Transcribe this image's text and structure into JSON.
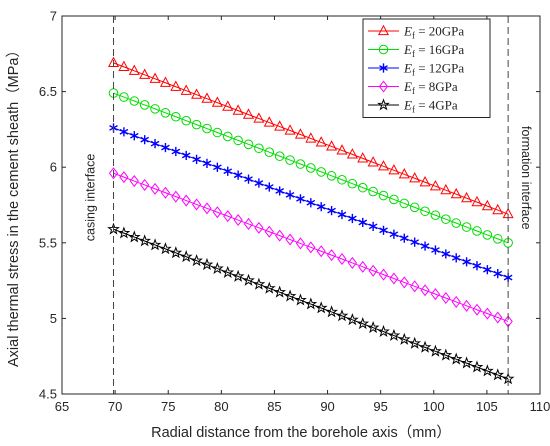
{
  "chart_data": {
    "type": "line",
    "xlabel": "Radial distance from the borehole axis（mm）",
    "ylabel": "Axial thermal stress in the cement sheath（MPa）",
    "xlim": [
      65,
      110
    ],
    "ylim": [
      4.5,
      7
    ],
    "xticks": [
      "65",
      "70",
      "75",
      "80",
      "85",
      "90",
      "95",
      "100",
      "105",
      "110"
    ],
    "yticks": [
      "4.5",
      "5",
      "5.5",
      "6",
      "6.5",
      "7"
    ],
    "grid": false,
    "legend_position": "top-right",
    "annotations": {
      "left": {
        "text": "casing interface",
        "x": 69.85
      },
      "right": {
        "text": "formation interface",
        "x": 107.0
      }
    },
    "x_start": 69.85,
    "x_end": 107.0,
    "marker_count": 39,
    "series": [
      {
        "name": "Ef = 20GPa",
        "sub": "f",
        "value_label": " = 20GPa",
        "color": "#ff0000",
        "marker": "triangle",
        "y_start": 6.69,
        "y_end": 5.69
      },
      {
        "name": "Ef = 16GPa",
        "sub": "f",
        "value_label": " = 16GPa",
        "color": "#00dd00",
        "marker": "circle",
        "y_start": 6.49,
        "y_end": 5.5
      },
      {
        "name": "Ef = 12GPa",
        "sub": "f",
        "value_label": " = 12GPa",
        "color": "#0000ff",
        "marker": "asterisk",
        "y_start": 6.26,
        "y_end": 5.27
      },
      {
        "name": "Ef = 8GPa",
        "sub": "f",
        "value_label": " = 8GPa",
        "color": "#ff00ff",
        "marker": "diamond",
        "y_start": 5.96,
        "y_end": 4.98
      },
      {
        "name": "Ef = 4GPa",
        "sub": "f",
        "value_label": " = 4GPa",
        "color": "#000000",
        "marker": "star",
        "y_start": 5.59,
        "y_end": 4.6
      }
    ]
  }
}
